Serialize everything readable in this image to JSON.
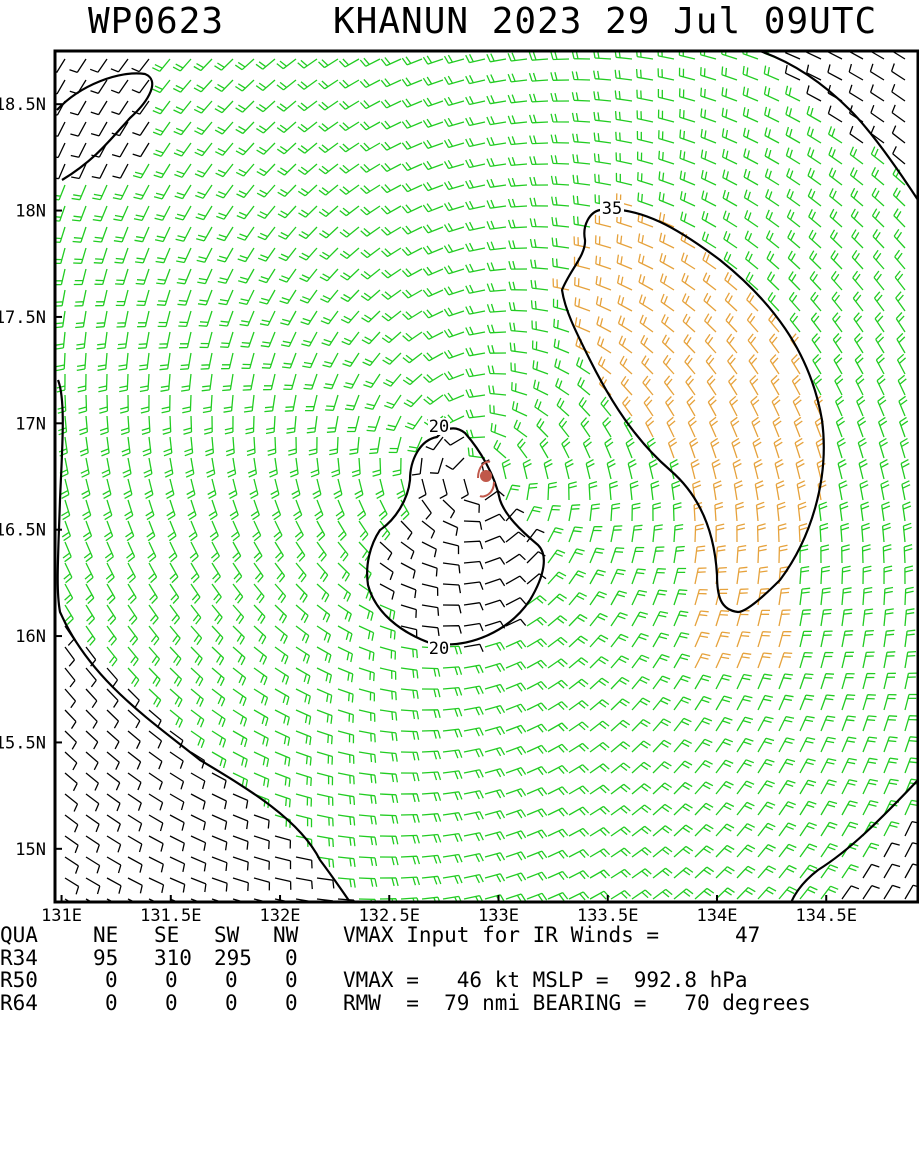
{
  "title": {
    "storm_id": "WP0623",
    "storm_line": "KHANUN 2023 29 Jul 09UTC"
  },
  "map": {
    "lat_labels": [
      "18.5N",
      "18N",
      "17.5N",
      "17N",
      "16.5N",
      "16N",
      "15.5N",
      "15N"
    ],
    "lat_values": [
      18.5,
      18,
      17.5,
      17,
      16.5,
      16,
      15.5,
      15
    ],
    "lon_labels": [
      "131E",
      "131.5E",
      "132E",
      "132.5E",
      "133E",
      "133.5E",
      "134E",
      "134.5E"
    ],
    "lon_values": [
      131,
      131.5,
      132,
      132.5,
      133,
      133.5,
      134,
      134.5
    ],
    "lon_range": [
      130.97,
      134.92
    ],
    "lat_range": [
      14.75,
      18.75
    ],
    "center": {
      "lon": 132.9,
      "lat": 16.74
    },
    "contour_labels": [
      "20",
      "20",
      "35"
    ],
    "colors": {
      "low_wind": "#000000",
      "medium_wind": "#22cc22",
      "gale_wind": "#e6a23c",
      "center_marker": "#c0584a"
    }
  },
  "table": {
    "header": {
      "label": "QUA",
      "cols": [
        "NE",
        "SE",
        "SW",
        "NW"
      ],
      "note": "VMAX Input for IR Winds =",
      "note_value": "47"
    },
    "r34": {
      "label": "R34",
      "vals": [
        "95",
        "310",
        "295",
        "0"
      ]
    },
    "r50": {
      "label": "R50",
      "vals": [
        "0",
        "0",
        "0",
        "0"
      ],
      "note": "VMAX =   46 kt MSLP =  992.8 hPa"
    },
    "r64": {
      "label": "R64",
      "vals": [
        "0",
        "0",
        "0",
        "0"
      ],
      "note": "RMW  =  79 nmi BEARING =   70 degrees"
    }
  }
}
